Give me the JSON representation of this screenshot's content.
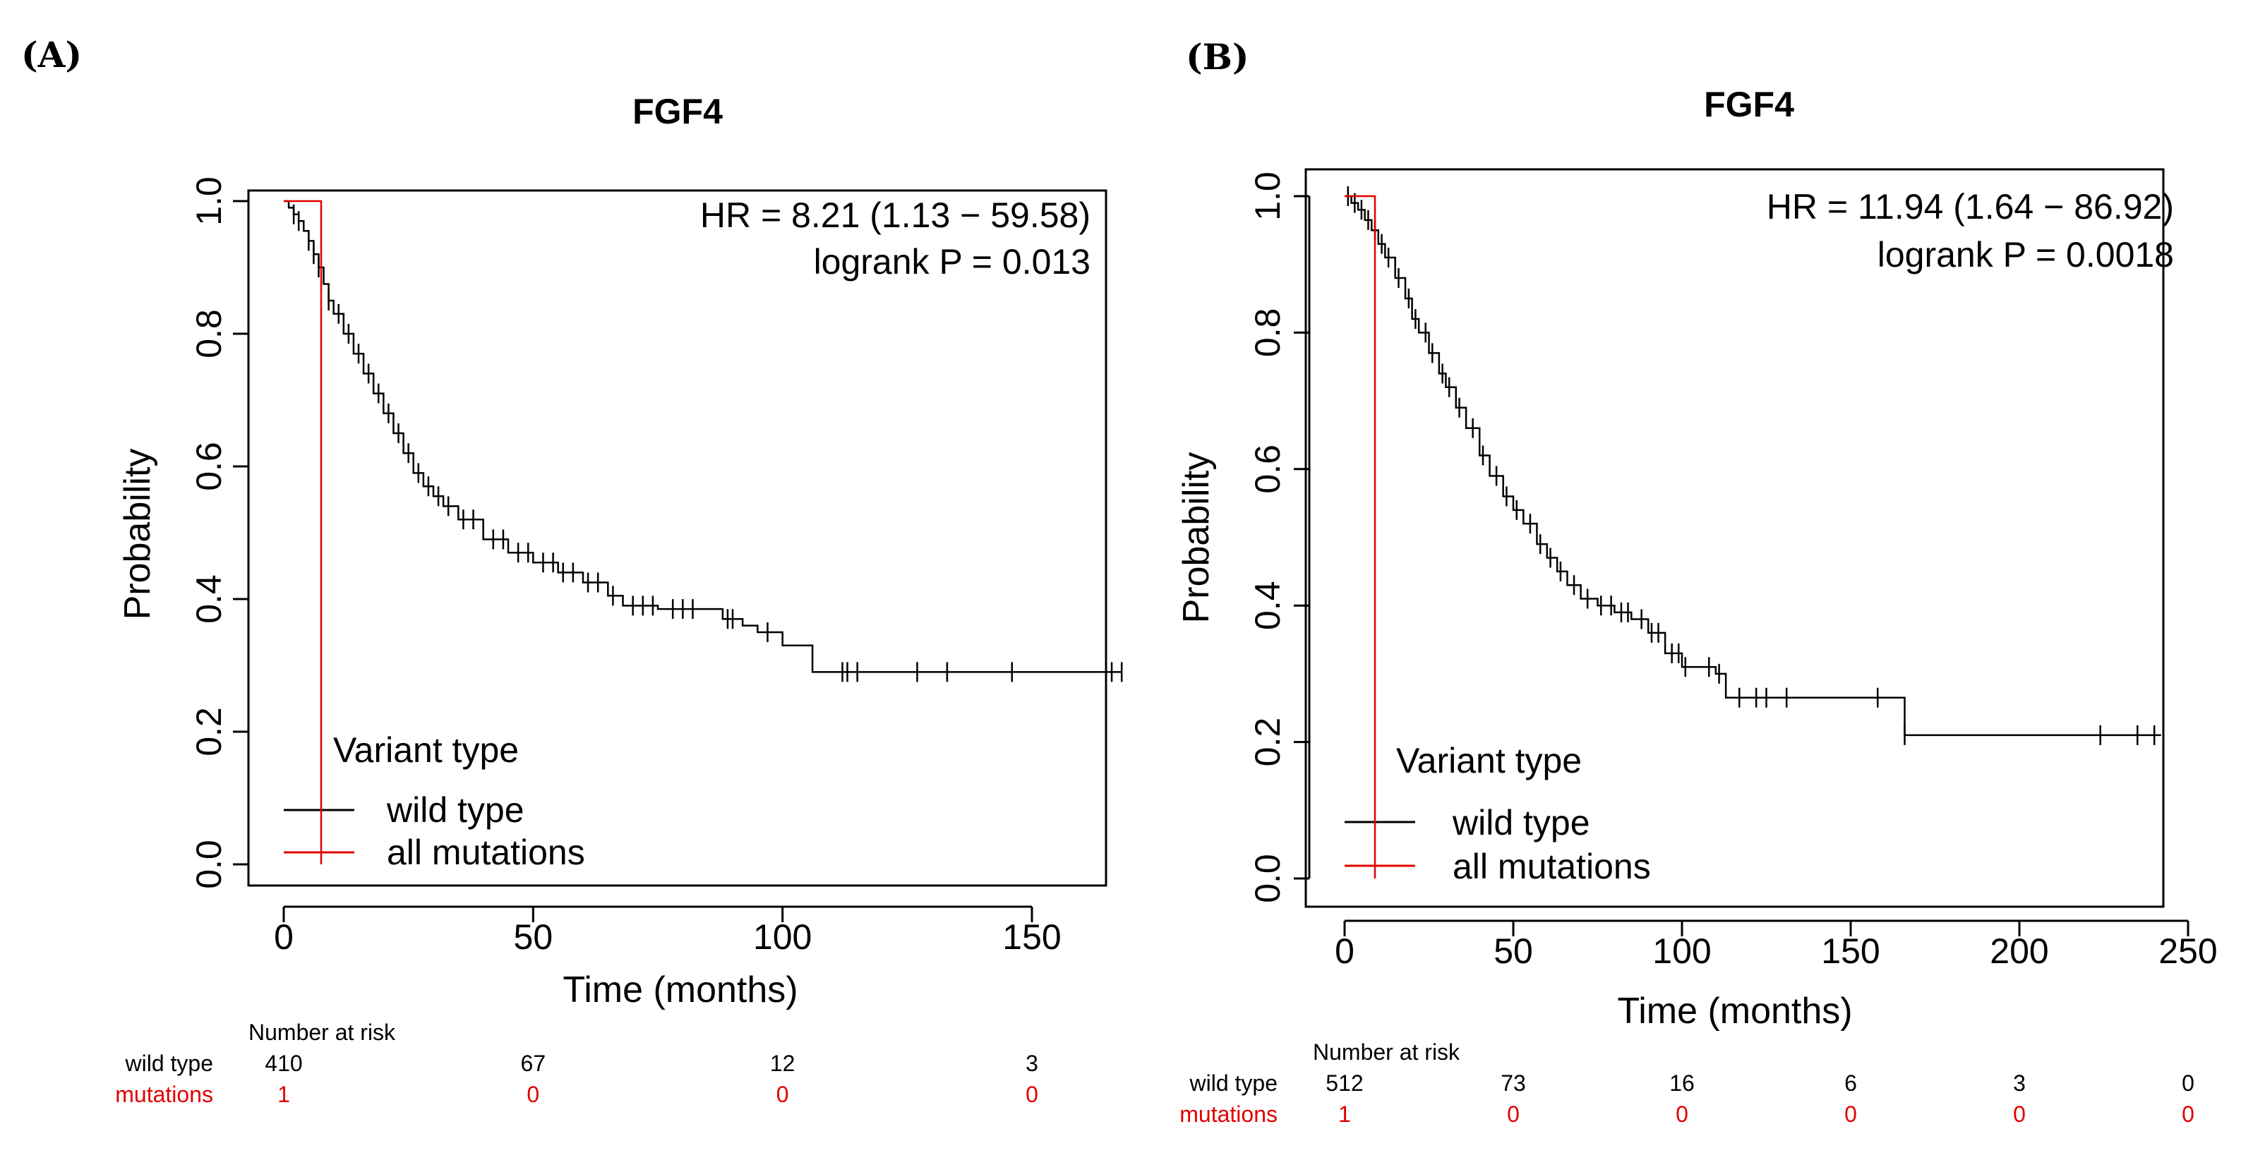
{
  "chart_data": [
    {
      "panel_label": "(A)",
      "type": "line",
      "title": "FGF4",
      "xlabel": "Time (months)",
      "ylabel": "Probability",
      "xlim": [
        0,
        170
      ],
      "ylim": [
        0,
        1
      ],
      "xticks": [
        0,
        50,
        100,
        150
      ],
      "yticks": [
        "0.0",
        "0.2",
        "0.4",
        "0.6",
        "0.8",
        "1.0"
      ],
      "stats": [
        "HR = 8.21 (1.13 − 59.58)",
        "logrank P = 0.013"
      ],
      "legend": {
        "title": "Variant type",
        "entries": [
          "wild type",
          "all mutations"
        ],
        "position": "bottom-left"
      },
      "series": [
        {
          "name": "wild type",
          "color": "#000000",
          "x": [
            0,
            1,
            2,
            3,
            4,
            5,
            6,
            7,
            8,
            9,
            10,
            12,
            14,
            16,
            18,
            20,
            22,
            24,
            26,
            28,
            30,
            32,
            35,
            40,
            45,
            50,
            55,
            60,
            65,
            68,
            75,
            85,
            88,
            92,
            95,
            100,
            103,
            106,
            110,
            115,
            130,
            150,
            168
          ],
          "y": [
            1.0,
            0.99,
            0.98,
            0.97,
            0.955,
            0.94,
            0.92,
            0.9,
            0.875,
            0.85,
            0.83,
            0.8,
            0.77,
            0.74,
            0.71,
            0.68,
            0.65,
            0.62,
            0.59,
            0.57,
            0.555,
            0.54,
            0.52,
            0.49,
            0.47,
            0.455,
            0.44,
            0.425,
            0.405,
            0.39,
            0.385,
            0.385,
            0.37,
            0.36,
            0.35,
            0.33,
            0.33,
            0.29,
            0.29,
            0.29,
            0.29,
            0.29,
            0.29
          ],
          "censored_x": [
            2,
            3,
            5,
            6,
            7,
            9,
            11,
            13,
            15,
            17,
            19,
            21,
            23,
            25,
            27,
            29,
            31,
            33,
            36,
            38,
            42,
            44,
            47,
            49,
            52,
            54,
            56,
            58,
            61,
            63,
            66,
            70,
            72,
            74,
            78,
            80,
            82,
            89,
            90,
            97,
            112,
            113,
            115,
            127,
            133,
            146,
            166,
            168
          ]
        },
        {
          "name": "all mutations",
          "color": "#e00000",
          "x": [
            0,
            7.5,
            7.5
          ],
          "y": [
            1.0,
            1.0,
            0.0
          ]
        }
      ],
      "risk_table": {
        "header": "Number at risk",
        "times": [
          0,
          50,
          100,
          150
        ],
        "rows": [
          {
            "label": "wild type",
            "values": [
              "410",
              "67",
              "12",
              "3"
            ]
          },
          {
            "label": "mutations",
            "values": [
              "1",
              "0",
              "0",
              "0"
            ]
          }
        ]
      }
    },
    {
      "panel_label": "(B)",
      "type": "line",
      "title": "FGF4",
      "xlabel": "Time (months)",
      "ylabel": "Probability",
      "xlim": [
        0,
        250
      ],
      "ylim": [
        0,
        1
      ],
      "xticks": [
        0,
        50,
        100,
        150,
        200,
        250
      ],
      "yticks": [
        "0.0",
        "0.2",
        "0.4",
        "0.6",
        "0.8",
        "1.0"
      ],
      "stats": [
        "HR = 11.94 (1.64 − 86.92)",
        "logrank P = 0.0018"
      ],
      "legend": {
        "title": "Variant type",
        "entries": [
          "wild type",
          "all mutations"
        ],
        "position": "bottom-left"
      },
      "series": [
        {
          "name": "wild type",
          "color": "#000000",
          "x": [
            0,
            2,
            4,
            6,
            8,
            10,
            12,
            15,
            18,
            20,
            22,
            25,
            28,
            30,
            33,
            36,
            40,
            43,
            47,
            50,
            53,
            57,
            60,
            63,
            66,
            70,
            75,
            80,
            85,
            90,
            95,
            100,
            105,
            110,
            113,
            120,
            130,
            150,
            160,
            165,
            166,
            200,
            225,
            240,
            242
          ],
          "y": [
            1.0,
            0.99,
            0.98,
            0.965,
            0.95,
            0.93,
            0.91,
            0.88,
            0.85,
            0.82,
            0.8,
            0.77,
            0.74,
            0.72,
            0.69,
            0.66,
            0.62,
            0.59,
            0.56,
            0.54,
            0.52,
            0.49,
            0.47,
            0.45,
            0.43,
            0.41,
            0.4,
            0.39,
            0.38,
            0.36,
            0.33,
            0.31,
            0.31,
            0.3,
            0.265,
            0.265,
            0.265,
            0.265,
            0.265,
            0.265,
            0.21,
            0.21,
            0.21,
            0.21,
            0.21
          ],
          "censored_x": [
            1,
            3,
            5,
            7,
            9,
            11,
            13,
            16,
            19,
            21,
            24,
            26,
            29,
            31,
            34,
            38,
            41,
            45,
            48,
            51,
            55,
            58,
            61,
            64,
            68,
            72,
            76,
            79,
            82,
            84,
            88,
            91,
            93,
            97,
            99,
            101,
            108,
            111,
            117,
            122,
            125,
            131,
            158,
            166,
            224,
            235,
            240
          ]
        },
        {
          "name": "all mutations",
          "color": "#e00000",
          "x": [
            0,
            9,
            9
          ],
          "y": [
            1.0,
            1.0,
            0.0
          ]
        }
      ],
      "risk_table": {
        "header": "Number at risk",
        "times": [
          0,
          50,
          100,
          150,
          200,
          250
        ],
        "rows": [
          {
            "label": "wild type",
            "values": [
              "512",
              "73",
              "16",
              "6",
              "3",
              "0"
            ]
          },
          {
            "label": "mutations",
            "values": [
              "1",
              "0",
              "0",
              "0",
              "0",
              "0"
            ]
          }
        ]
      }
    }
  ]
}
